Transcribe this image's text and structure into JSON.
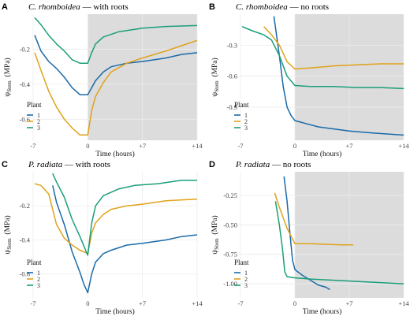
{
  "figure": {
    "legend_title": "Plant"
  },
  "chart_data": [
    {
      "type": "line",
      "panel": "A",
      "species": "C. rhomboidea",
      "title_suffix": " — with roots",
      "xlabel": "Time (hours)",
      "ylabel": "ψStem (MPa)",
      "ylabel_main": "ψ",
      "ylabel_sub": "Stem",
      "ylabel_unit": "(MPa)",
      "xlim": [
        -7,
        14
      ],
      "ylim": [
        -0.72,
        0.0
      ],
      "xticks": [
        -7,
        0,
        7,
        14
      ],
      "xtick_labels": [
        "-7",
        "0",
        "+7",
        "+14"
      ],
      "yticks": [
        -0.6,
        -0.4,
        -0.2
      ],
      "ytick_labels": [
        "-0.6",
        "-0.4",
        "-0.2"
      ],
      "shade_from": 0,
      "series": [
        {
          "name": "1",
          "color": "#1a6aa8",
          "points": [
            [
              -6.8,
              -0.12
            ],
            [
              -6,
              -0.21
            ],
            [
              -5,
              -0.27
            ],
            [
              -4,
              -0.31
            ],
            [
              -3,
              -0.36
            ],
            [
              -2,
              -0.42
            ],
            [
              -1,
              -0.46
            ],
            [
              0,
              -0.46
            ],
            [
              1,
              -0.38
            ],
            [
              2,
              -0.33
            ],
            [
              3,
              -0.3
            ],
            [
              5,
              -0.28
            ],
            [
              7,
              -0.27
            ],
            [
              10,
              -0.25
            ],
            [
              12,
              -0.23
            ],
            [
              14,
              -0.22
            ]
          ]
        },
        {
          "name": "2",
          "color": "#e0a21a",
          "points": [
            [
              -6.8,
              -0.22
            ],
            [
              -6,
              -0.32
            ],
            [
              -5,
              -0.44
            ],
            [
              -4,
              -0.53
            ],
            [
              -3,
              -0.6
            ],
            [
              -2,
              -0.65
            ],
            [
              -1,
              -0.69
            ],
            [
              0,
              -0.69
            ],
            [
              0.5,
              -0.55
            ],
            [
              1,
              -0.47
            ],
            [
              2,
              -0.39
            ],
            [
              3,
              -0.33
            ],
            [
              5,
              -0.28
            ],
            [
              7,
              -0.25
            ],
            [
              10,
              -0.21
            ],
            [
              12,
              -0.18
            ],
            [
              14,
              -0.15
            ]
          ]
        },
        {
          "name": "3",
          "color": "#1a9e7a",
          "points": [
            [
              -6.8,
              -0.02
            ],
            [
              -6,
              -0.06
            ],
            [
              -5,
              -0.12
            ],
            [
              -4,
              -0.17
            ],
            [
              -3,
              -0.21
            ],
            [
              -2,
              -0.26
            ],
            [
              -1,
              -0.28
            ],
            [
              0,
              -0.28
            ],
            [
              0.5,
              -0.22
            ],
            [
              1,
              -0.17
            ],
            [
              2,
              -0.13
            ],
            [
              4,
              -0.1
            ],
            [
              7,
              -0.08
            ],
            [
              10,
              -0.07
            ],
            [
              14,
              -0.065
            ]
          ]
        }
      ]
    },
    {
      "type": "line",
      "panel": "B",
      "species": "C. rhomboidea",
      "title_suffix": " — no roots",
      "xlabel": "Time (hours)",
      "ylabel": "ψStem (MPa)",
      "ylabel_main": "ψ",
      "ylabel_sub": "Stem",
      "ylabel_unit": "(MPa)",
      "xlim": [
        -7,
        14
      ],
      "ylim": [
        -1.22,
        0.0
      ],
      "xticks": [
        -7,
        0,
        7,
        14
      ],
      "xtick_labels": [
        "-7",
        "0",
        "+7",
        "+14"
      ],
      "yticks": [
        -0.9,
        -0.6,
        -0.3
      ],
      "ytick_labels": [
        "-0.9",
        "-0.6",
        "-0.3"
      ],
      "shade_from": 0,
      "series": [
        {
          "name": "1",
          "color": "#1a6aa8",
          "points": [
            [
              -2.7,
              -0.02
            ],
            [
              -2,
              -0.4
            ],
            [
              -1.5,
              -0.7
            ],
            [
              -1,
              -0.9
            ],
            [
              -0.5,
              -0.98
            ],
            [
              0,
              -1.03
            ],
            [
              1,
              -1.05
            ],
            [
              3,
              -1.09
            ],
            [
              5,
              -1.11
            ],
            [
              7,
              -1.13
            ],
            [
              10,
              -1.15
            ],
            [
              14,
              -1.17
            ]
          ]
        },
        {
          "name": "2",
          "color": "#e0a21a",
          "points": [
            [
              -4,
              -0.12
            ],
            [
              -3,
              -0.2
            ],
            [
              -2,
              -0.3
            ],
            [
              -1,
              -0.46
            ],
            [
              0,
              -0.53
            ],
            [
              2,
              -0.52
            ],
            [
              5,
              -0.5
            ],
            [
              8,
              -0.49
            ],
            [
              11,
              -0.48
            ],
            [
              14,
              -0.48
            ]
          ]
        },
        {
          "name": "3",
          "color": "#1a9e7a",
          "points": [
            [
              -6.8,
              -0.12
            ],
            [
              -5.5,
              -0.16
            ],
            [
              -4,
              -0.2
            ],
            [
              -3,
              -0.25
            ],
            [
              -2,
              -0.4
            ],
            [
              -1,
              -0.6
            ],
            [
              0,
              -0.69
            ],
            [
              2,
              -0.7
            ],
            [
              5,
              -0.7
            ],
            [
              8,
              -0.71
            ],
            [
              11,
              -0.71
            ],
            [
              14,
              -0.72
            ]
          ]
        }
      ]
    },
    {
      "type": "line",
      "panel": "C",
      "species": "P. radiata",
      "title_suffix": " — with roots",
      "xlabel": "Time (hours)",
      "ylabel": "ψStem (MPa)",
      "ylabel_main": "ψ",
      "ylabel_sub": "Stem",
      "ylabel_unit": "(MPa)",
      "xlim": [
        -7,
        14
      ],
      "ylim": [
        -0.74,
        0.0
      ],
      "xticks": [
        -7,
        0,
        7,
        14
      ],
      "xtick_labels": [
        "-7",
        "0",
        "+7",
        "+14"
      ],
      "yticks": [
        -0.6,
        -0.4,
        -0.2
      ],
      "ytick_labels": [
        "-0.6",
        "-0.4",
        "-0.2"
      ],
      "shade_from": null,
      "series": [
        {
          "name": "1",
          "color": "#1a6aa8",
          "points": [
            [
              -4.5,
              -0.08
            ],
            [
              -4,
              -0.18
            ],
            [
              -3,
              -0.31
            ],
            [
              -2,
              -0.47
            ],
            [
              -1,
              -0.59
            ],
            [
              -0.5,
              -0.66
            ],
            [
              0,
              -0.71
            ],
            [
              0.5,
              -0.6
            ],
            [
              1,
              -0.53
            ],
            [
              2,
              -0.48
            ],
            [
              3,
              -0.46
            ],
            [
              5,
              -0.43
            ],
            [
              7,
              -0.42
            ],
            [
              10,
              -0.4
            ],
            [
              12,
              -0.38
            ],
            [
              14,
              -0.37
            ]
          ]
        },
        {
          "name": "2",
          "color": "#e0a21a",
          "points": [
            [
              -6.8,
              -0.07
            ],
            [
              -6,
              -0.08
            ],
            [
              -5,
              -0.13
            ],
            [
              -4,
              -0.31
            ],
            [
              -3,
              -0.39
            ],
            [
              -2,
              -0.43
            ],
            [
              -1,
              -0.46
            ],
            [
              0,
              -0.48
            ],
            [
              0.5,
              -0.36
            ],
            [
              1,
              -0.3
            ],
            [
              2,
              -0.25
            ],
            [
              3,
              -0.22
            ],
            [
              5,
              -0.2
            ],
            [
              7,
              -0.19
            ],
            [
              10,
              -0.17
            ],
            [
              14,
              -0.16
            ]
          ]
        },
        {
          "name": "3",
          "color": "#1a9e7a",
          "points": [
            [
              -4.5,
              -0.01
            ],
            [
              -4,
              -0.06
            ],
            [
              -3,
              -0.15
            ],
            [
              -2,
              -0.28
            ],
            [
              -1,
              -0.38
            ],
            [
              0,
              -0.49
            ],
            [
              0.5,
              -0.3
            ],
            [
              1,
              -0.2
            ],
            [
              2,
              -0.14
            ],
            [
              4,
              -0.1
            ],
            [
              6,
              -0.08
            ],
            [
              9,
              -0.07
            ],
            [
              12,
              -0.05
            ],
            [
              14,
              -0.05
            ]
          ]
        }
      ]
    },
    {
      "type": "line",
      "panel": "D",
      "species": "P. radiata",
      "title_suffix": " — no roots",
      "xlabel": "Time (hours)",
      "ylabel": "ψStem (MPa)",
      "ylabel_main": "ψ",
      "ylabel_sub": "Stem",
      "ylabel_unit": "(MPa)",
      "xlim": [
        -7,
        14
      ],
      "ylim": [
        -1.12,
        -0.05
      ],
      "xticks": [
        -7,
        0,
        7,
        14
      ],
      "xtick_labels": [
        "-7",
        "0",
        "+7",
        "+14"
      ],
      "yticks": [
        -1.0,
        -0.75,
        -0.5,
        -0.25
      ],
      "ytick_labels": [
        "-1.00",
        "-0.75",
        "-0.50",
        "-0.25"
      ],
      "shade_from": 0,
      "series": [
        {
          "name": "1",
          "color": "#1a6aa8",
          "points": [
            [
              -1.4,
              -0.09
            ],
            [
              -1,
              -0.3
            ],
            [
              -0.6,
              -0.6
            ],
            [
              -0.3,
              -0.8
            ],
            [
              0,
              -0.88
            ],
            [
              1,
              -0.93
            ],
            [
              2,
              -0.97
            ],
            [
              3,
              -1.01
            ],
            [
              4,
              -1.03
            ],
            [
              4.5,
              -1.05
            ]
          ]
        },
        {
          "name": "2",
          "color": "#e0a21a",
          "points": [
            [
              -2.6,
              -0.23
            ],
            [
              -2,
              -0.35
            ],
            [
              -1,
              -0.53
            ],
            [
              0,
              -0.66
            ],
            [
              2,
              -0.66
            ],
            [
              4,
              -0.665
            ],
            [
              6,
              -0.67
            ],
            [
              7.5,
              -0.67
            ]
          ]
        },
        {
          "name": "3",
          "color": "#1a9e7a",
          "points": [
            [
              -2.5,
              -0.3
            ],
            [
              -2,
              -0.5
            ],
            [
              -1.6,
              -0.7
            ],
            [
              -1.3,
              -0.9
            ],
            [
              -1,
              -0.94
            ],
            [
              0,
              -0.95
            ],
            [
              2,
              -0.96
            ],
            [
              5,
              -0.97
            ],
            [
              8,
              -0.98
            ],
            [
              11,
              -0.99
            ],
            [
              14,
              -1.0
            ]
          ]
        }
      ]
    }
  ]
}
